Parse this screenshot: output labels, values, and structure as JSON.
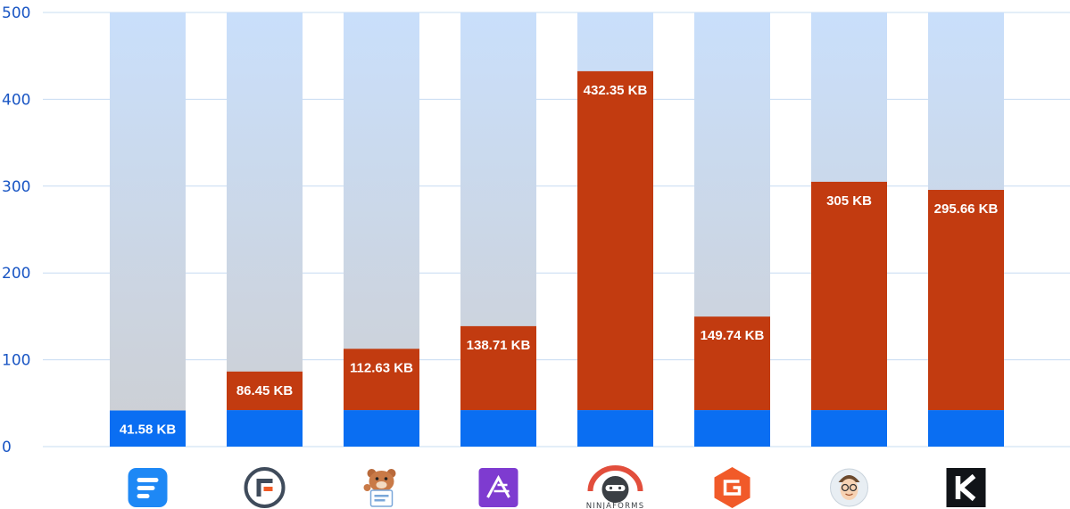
{
  "chart_data": {
    "type": "bar",
    "title": "",
    "xlabel": "",
    "ylabel": "",
    "ylim": [
      0,
      500
    ],
    "yticks": [
      0,
      100,
      200,
      300,
      400,
      500
    ],
    "grid": true,
    "categories": [
      "Fluent Forms",
      "Formidable Forms",
      "WPForms",
      "Everest Forms",
      "Ninja Forms",
      "Gravity Forms",
      "Happyforms",
      "Kadence Forms"
    ],
    "category_icons": [
      "fluent-forms-logo-icon",
      "formidable-forms-logo-icon",
      "wpforms-bear-icon",
      "everest-forms-logo-icon",
      "ninja-forms-logo-icon",
      "gravity-forms-logo-icon",
      "happyforms-face-icon",
      "kadence-k-logo-icon"
    ],
    "logo_text": {
      "ninja_forms": "NINJAFORMS"
    },
    "values": [
      41.58,
      86.45,
      112.63,
      138.71,
      432.35,
      149.74,
      305,
      295.66
    ],
    "value_labels": [
      "41.58 KB",
      "86.45 KB",
      "112.63 KB",
      "138.71 KB",
      "432.35 KB",
      "149.74 KB",
      "305 KB",
      "295.66 KB"
    ],
    "baseline_segment": 42,
    "colors": {
      "baseline": "#0a6ef2",
      "excess": "#c23b10",
      "background_top": "#c9dffb",
      "background_bottom": "#cdcfd3",
      "grid": "#c7dcf2",
      "axis_text": "#1a56c4"
    }
  }
}
